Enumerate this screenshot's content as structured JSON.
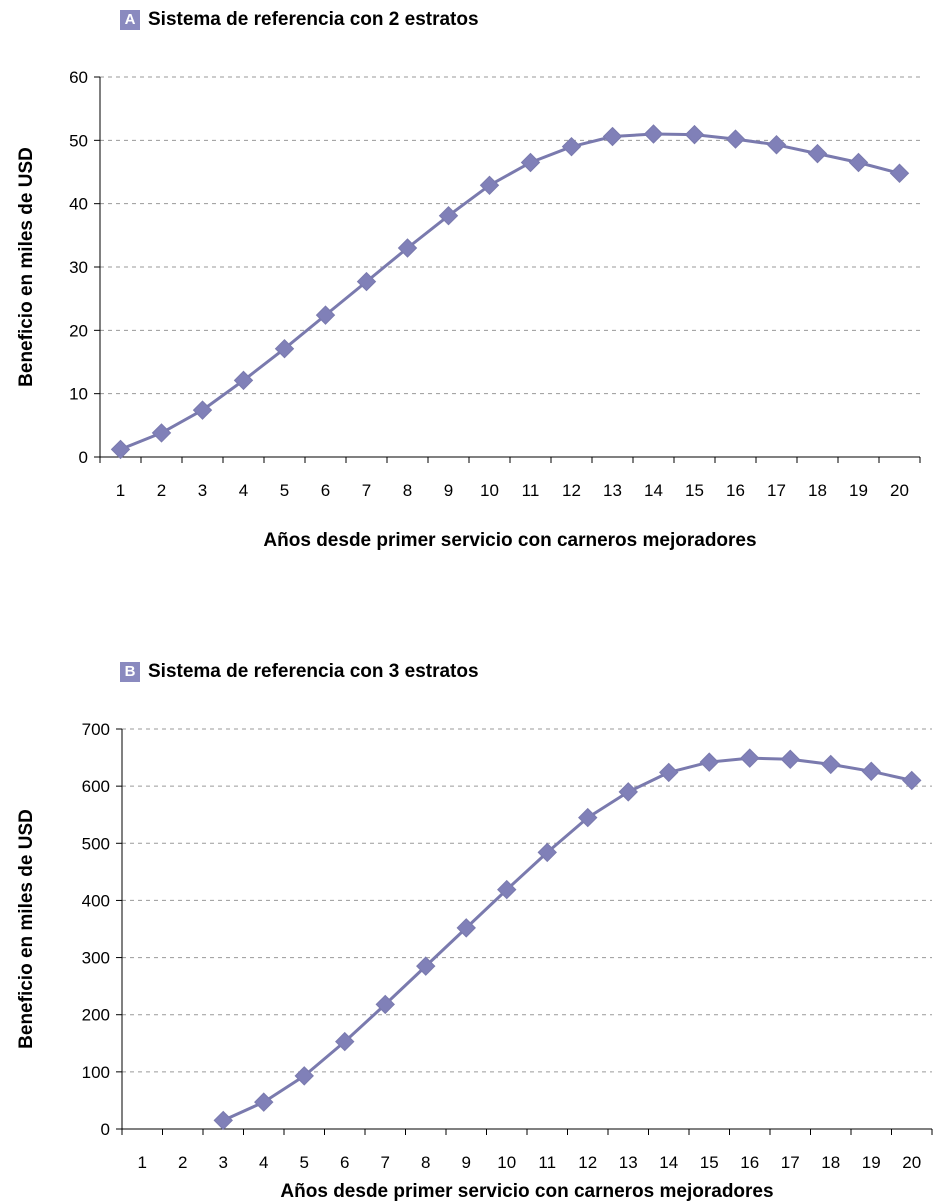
{
  "colors": {
    "series": "#7a7aae",
    "marker": "#8080b8",
    "badge": "#8a8abf",
    "grid": "#9a9a9a"
  },
  "panels": [
    {
      "letter": "A",
      "title": "Sistema de referencia con 2 estratos"
    },
    {
      "letter": "B",
      "title": "Sistema de referencia con 3 estratos"
    }
  ],
  "chart_data": [
    {
      "type": "line",
      "title": "Sistema de referencia con 2 estratos",
      "xlabel": "Años desde primer servicio con carneros mejoradores",
      "ylabel": "Beneficio en miles de USD",
      "categories": [
        "1",
        "2",
        "3",
        "4",
        "5",
        "6",
        "7",
        "8",
        "9",
        "10",
        "11",
        "12",
        "13",
        "14",
        "15",
        "16",
        "17",
        "18",
        "19",
        "20"
      ],
      "values": [
        1.2,
        3.8,
        7.4,
        12.1,
        17.1,
        22.4,
        27.7,
        33.0,
        38.1,
        42.9,
        46.5,
        49.0,
        50.6,
        51.0,
        50.9,
        50.2,
        49.3,
        47.9,
        46.5,
        44.8
      ],
      "ylim": [
        0,
        60
      ],
      "yticks": [
        0,
        10,
        20,
        30,
        40,
        50,
        60
      ],
      "grid": true,
      "marker": "diamond"
    },
    {
      "type": "line",
      "title": "Sistema de referencia con 3 estratos",
      "xlabel": "Años desde primer servicio con carneros mejoradores",
      "ylabel": "Beneficio en miles de USD",
      "categories": [
        "1",
        "2",
        "3",
        "4",
        "5",
        "6",
        "7",
        "8",
        "9",
        "10",
        "11",
        "12",
        "13",
        "14",
        "15",
        "16",
        "17",
        "18",
        "19",
        "20"
      ],
      "values": [
        null,
        null,
        15,
        47,
        93,
        153,
        218,
        285,
        352,
        419,
        484,
        545,
        590,
        624,
        642,
        649,
        647,
        638,
        626,
        610
      ],
      "ylim": [
        0,
        700
      ],
      "yticks": [
        0,
        100,
        200,
        300,
        400,
        500,
        600,
        700
      ],
      "grid": true,
      "marker": "diamond"
    }
  ]
}
